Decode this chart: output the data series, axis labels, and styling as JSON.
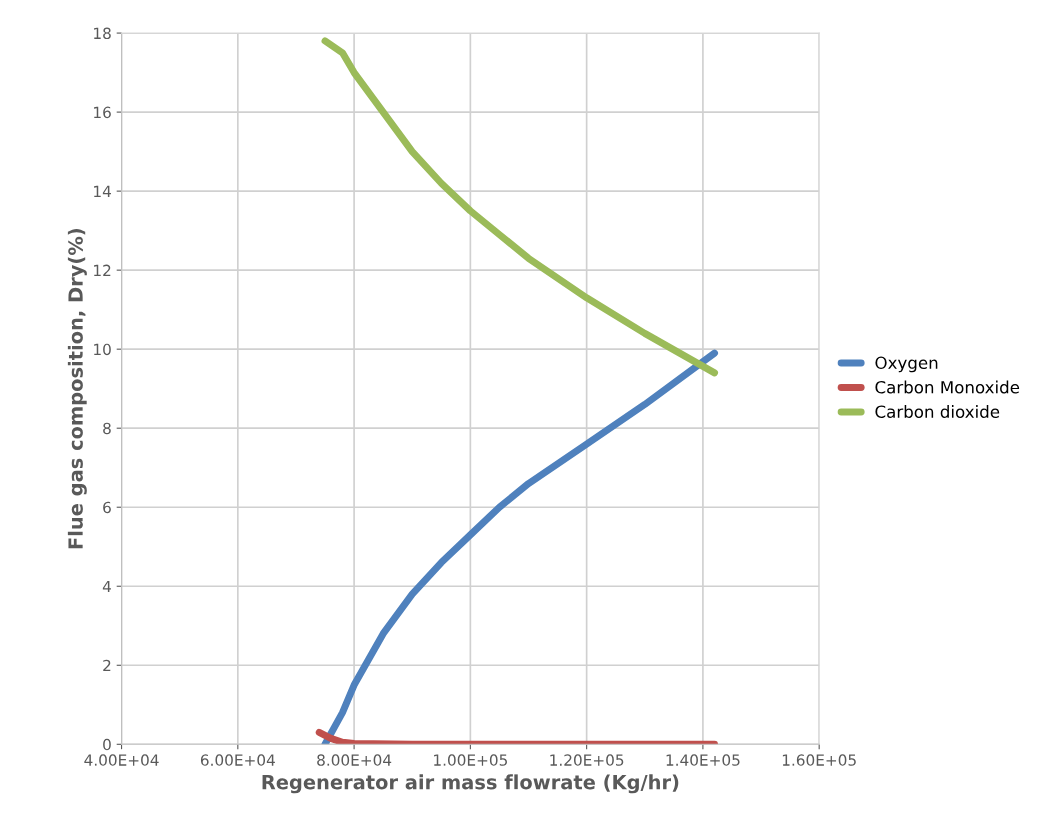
{
  "chart_data": {
    "type": "line",
    "xlabel": "Regenerator air mass flowrate (Kg/hr)",
    "ylabel": "Flue gas composition, Dry(%)",
    "xlim": [
      40000,
      160000
    ],
    "xticks": [
      {
        "value": 40000,
        "label": "4.00E+04"
      },
      {
        "value": 60000,
        "label": "6.00E+04"
      },
      {
        "value": 80000,
        "label": "8.00E+04"
      },
      {
        "value": 100000,
        "label": "1.00E+05"
      },
      {
        "value": 120000,
        "label": "1.20E+05"
      },
      {
        "value": 140000,
        "label": "1.40E+05"
      },
      {
        "value": 160000,
        "label": "1.60E+05"
      }
    ],
    "ylim": [
      0,
      18
    ],
    "yticks": [
      0,
      2,
      4,
      6,
      8,
      10,
      12,
      14,
      16,
      18
    ],
    "grid": true,
    "legend": "right",
    "marker": "none",
    "line_style": "solid",
    "series": [
      {
        "name": "Oxygen",
        "color": "#4f81bd",
        "x": [
          75000,
          78000,
          80000,
          85000,
          90000,
          95000,
          100000,
          105000,
          110000,
          120000,
          130000,
          142000
        ],
        "values": [
          0,
          0.8,
          1.5,
          2.8,
          3.8,
          4.6,
          5.3,
          6.0,
          6.6,
          7.6,
          8.6,
          9.9
        ]
      },
      {
        "name": "Carbon Monoxide",
        "color": "#c0504d",
        "x": [
          74000,
          76000,
          78000,
          80000,
          90000,
          142000
        ],
        "values": [
          0.3,
          0.15,
          0.05,
          0.02,
          0,
          0
        ]
      },
      {
        "name": "Carbon dioxide",
        "color": "#9bbb59",
        "x": [
          75000,
          78000,
          80000,
          85000,
          90000,
          95000,
          100000,
          105000,
          110000,
          120000,
          130000,
          142000
        ],
        "values": [
          17.8,
          17.5,
          17.0,
          16.0,
          15.0,
          14.2,
          13.5,
          12.9,
          12.3,
          11.3,
          10.4,
          9.4
        ]
      }
    ]
  }
}
